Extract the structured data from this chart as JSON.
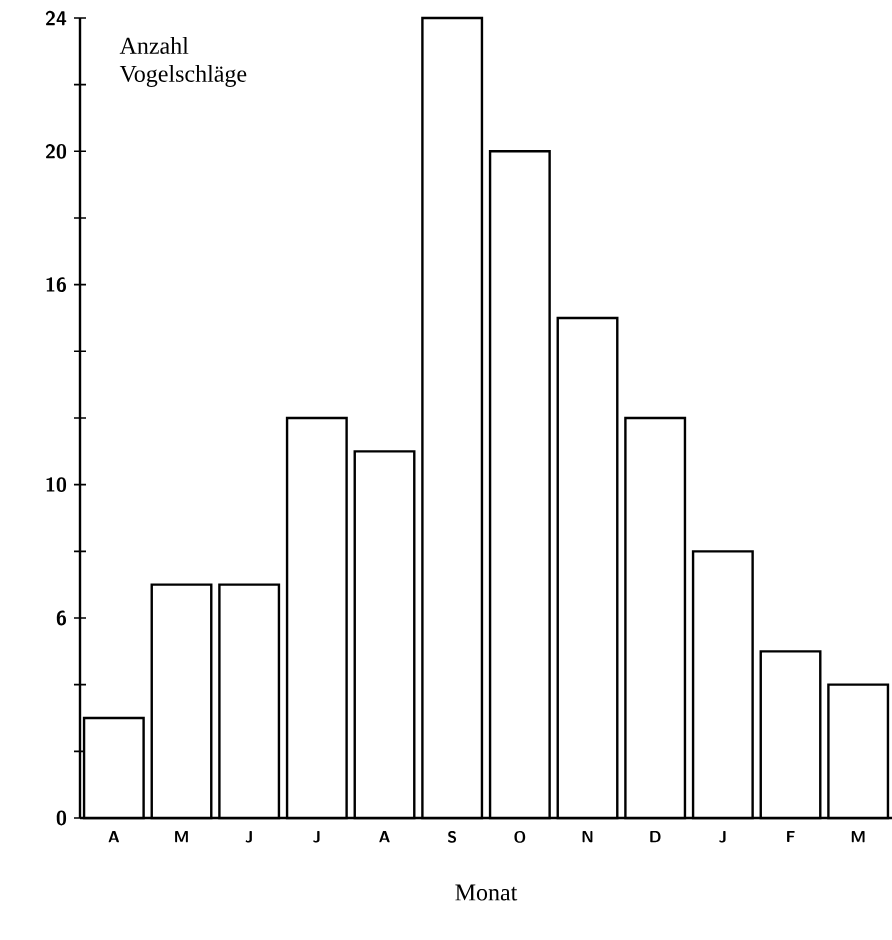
{
  "chart_data": {
    "type": "bar",
    "xlabel": "Monat",
    "ylabel": "Anzahl Vogelschläge",
    "categories": [
      "A",
      "M",
      "J",
      "J",
      "A",
      "S",
      "O",
      "N",
      "D",
      "J",
      "F",
      "M"
    ],
    "values": [
      3,
      7,
      7,
      12,
      11,
      24,
      20,
      15,
      12,
      8,
      5,
      4
    ],
    "color": "#ffffff",
    "ylim": [
      0,
      24
    ],
    "yticks": [
      0,
      {
        "value": 2,
        "label": null
      },
      {
        "value": 4,
        "label": null
      },
      6,
      {
        "value": 8,
        "label": null
      },
      10,
      {
        "value": 12,
        "label": null
      },
      {
        "value": 14,
        "label": null
      },
      16,
      {
        "value": 18,
        "label": null
      },
      20,
      {
        "value": 22,
        "label": null
      },
      24
    ],
    "grid": false
  }
}
